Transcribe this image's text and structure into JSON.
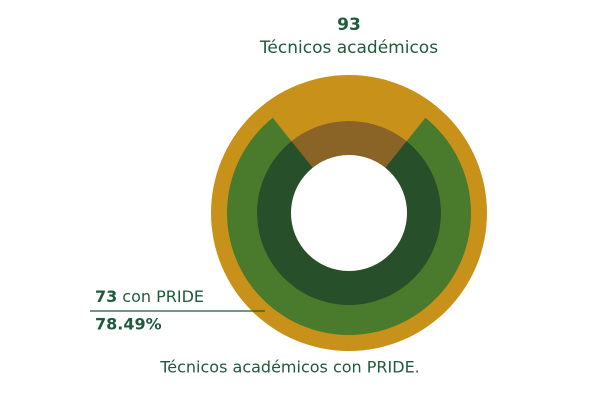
{
  "chart_data": {
    "type": "radial",
    "total": {
      "value": 93,
      "label": "Técnicos académicos",
      "color": "#c8921a",
      "inner_color": "#8a6326"
    },
    "part": {
      "value": 73,
      "label": "con PRIDE",
      "percent": 78.49,
      "percent_label": "78.49%",
      "color": "#4a7a2c",
      "inner_color": "#27502a"
    },
    "caption": "Técnicos académicos con PRIDE."
  }
}
